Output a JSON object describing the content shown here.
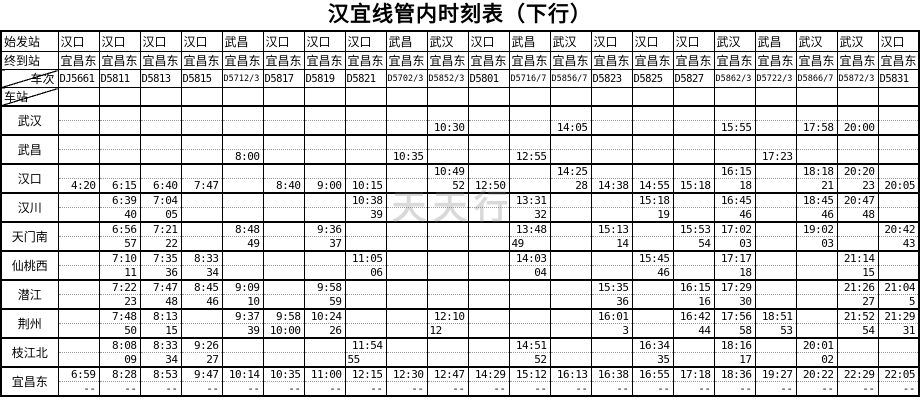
{
  "title": "汉宜线管内时刻表（下行）",
  "watermark": "天天行",
  "header": {
    "origin_label": "始发站",
    "dest_label": "终到站",
    "train_label": "车次",
    "station_label": "车站"
  },
  "colors": {
    "border": "#000000",
    "subrow_line": "#9a9a9a",
    "watermark": "#828282",
    "background": "#ffffff",
    "text": "#000000"
  },
  "columns": [
    {
      "origin": "汉口",
      "dest": "宜昌东",
      "train": "DJ5661"
    },
    {
      "origin": "汉口",
      "dest": "宜昌东",
      "train": "D5811"
    },
    {
      "origin": "汉口",
      "dest": "宜昌东",
      "train": "D5813"
    },
    {
      "origin": "汉口",
      "dest": "宜昌东",
      "train": "D5815"
    },
    {
      "origin": "武昌",
      "dest": "宜昌东",
      "train": "D5712/3"
    },
    {
      "origin": "汉口",
      "dest": "宜昌东",
      "train": "D5817"
    },
    {
      "origin": "汉口",
      "dest": "宜昌东",
      "train": "D5819"
    },
    {
      "origin": "汉口",
      "dest": "宜昌东",
      "train": "D5821"
    },
    {
      "origin": "武昌",
      "dest": "宜昌东",
      "train": "D5702/3"
    },
    {
      "origin": "武汉",
      "dest": "宜昌东",
      "train": "D5852/3"
    },
    {
      "origin": "汉口",
      "dest": "宜昌东",
      "train": "D5801"
    },
    {
      "origin": "武昌",
      "dest": "宜昌东",
      "train": "D5716/7"
    },
    {
      "origin": "武汉",
      "dest": "宜昌东",
      "train": "D5856/7"
    },
    {
      "origin": "汉口",
      "dest": "宜昌东",
      "train": "D5823"
    },
    {
      "origin": "汉口",
      "dest": "宜昌东",
      "train": "D5825"
    },
    {
      "origin": "汉口",
      "dest": "宜昌东",
      "train": "D5827"
    },
    {
      "origin": "武汉",
      "dest": "宜昌东",
      "train": "D5862/3"
    },
    {
      "origin": "武昌",
      "dest": "宜昌东",
      "train": "D5722/3"
    },
    {
      "origin": "武汉",
      "dest": "宜昌东",
      "train": "D5866/7"
    },
    {
      "origin": "武汉",
      "dest": "宜昌东",
      "train": "D5872/3"
    },
    {
      "origin": "汉口",
      "dest": "宜昌东",
      "train": "D5831"
    }
  ],
  "stations": [
    {
      "name": "武汉",
      "arr": [
        "",
        "",
        "",
        "",
        "",
        "",
        "",
        "",
        "",
        "",
        "",
        "",
        "",
        "",
        "",
        "",
        "",
        "",
        "",
        "",
        ""
      ],
      "dep": [
        "",
        "",
        "",
        "",
        "",
        "",
        "",
        "",
        "",
        "10:30",
        "",
        "",
        "14:05",
        "",
        "",
        "",
        "15:55",
        "",
        "17:58",
        "20:00",
        ""
      ]
    },
    {
      "name": "武昌",
      "arr": [
        "",
        "",
        "",
        "",
        "",
        "",
        "",
        "",
        "",
        "",
        "",
        "",
        "",
        "",
        "",
        "",
        "",
        "",
        "",
        "",
        ""
      ],
      "dep": [
        "",
        "",
        "",
        "",
        "8:00",
        "",
        "",
        "",
        "10:35",
        "",
        "",
        "12:55",
        "",
        "",
        "",
        "",
        "",
        "17:23",
        "",
        "",
        ""
      ]
    },
    {
      "name": "汉口",
      "arr": [
        "",
        "",
        "",
        "",
        "",
        "",
        "",
        "",
        "",
        "10:49",
        "",
        "",
        "14:25",
        "",
        "",
        "",
        "16:15",
        "",
        "18:18",
        "20:20",
        ""
      ],
      "dep": [
        "4:20",
        "6:15",
        "6:40",
        "7:47",
        "",
        "8:40",
        "9:00",
        "10:15",
        "",
        "52",
        "12:50",
        "",
        "28",
        "14:38",
        "14:55",
        "15:18",
        "18",
        "",
        "21",
        "23",
        "20:05"
      ]
    },
    {
      "name": "汉川",
      "arr": [
        "",
        "6:39",
        "7:04",
        "",
        "",
        "",
        "",
        "10:38",
        "",
        "",
        "",
        "13:31",
        "",
        "",
        "15:18",
        "",
        "16:45",
        "",
        "18:45",
        "20:47",
        ""
      ],
      "dep": [
        "",
        "40",
        "05",
        "",
        "",
        "",
        "",
        "39",
        "",
        "",
        "",
        "32",
        "",
        "",
        "19",
        "",
        "46",
        "",
        "46",
        "48",
        ""
      ]
    },
    {
      "name": "天门南",
      "arr": [
        "",
        "6:56",
        "7:21",
        "",
        "8:48",
        "",
        "9:36",
        "",
        "",
        "",
        "",
        "13:48",
        "",
        "15:13",
        "",
        "15:53",
        "17:02",
        "",
        "19:02",
        "",
        "20:42"
      ],
      "dep": [
        "",
        "57",
        "22",
        "",
        "49",
        "",
        "37",
        "",
        "",
        "",
        "",
        "49",
        "",
        "14",
        "",
        "54",
        "03",
        "",
        "03",
        "",
        "43"
      ]
    },
    {
      "name": "仙桃西",
      "arr": [
        "",
        "7:10",
        "7:35",
        "8:33",
        "",
        "",
        "",
        "11:05",
        "",
        "",
        "",
        "14:03",
        "",
        "",
        "15:45",
        "",
        "17:17",
        "",
        "",
        "21:14",
        ""
      ],
      "dep": [
        "",
        "11",
        "36",
        "34",
        "",
        "",
        "",
        "06",
        "",
        "",
        "",
        "04",
        "",
        "",
        "46",
        "",
        "18",
        "",
        "",
        "15",
        ""
      ]
    },
    {
      "name": "潜江",
      "arr": [
        "",
        "7:22",
        "7:47",
        "8:45",
        "9:09",
        "",
        "9:58",
        "",
        "",
        "",
        "",
        "",
        "",
        "15:35",
        "",
        "16:15",
        "17:29",
        "",
        "",
        "21:26",
        "21:04"
      ],
      "dep": [
        "",
        "23",
        "48",
        "46",
        "10",
        "",
        "59",
        "",
        "",
        "",
        "",
        "",
        "",
        "36",
        "",
        "16",
        "30",
        "",
        "",
        "27",
        "5"
      ]
    },
    {
      "name": "荆州",
      "arr": [
        "",
        "7:48",
        "8:13",
        "",
        "9:37",
        "9:58",
        "10:24",
        "",
        "",
        "12:10",
        "",
        "",
        "",
        "16:01",
        "",
        "16:42",
        "17:56",
        "18:51",
        "",
        "21:52",
        "21:29"
      ],
      "dep": [
        "",
        "50",
        "15",
        "",
        "39",
        "10:00",
        "26",
        "",
        "",
        "12",
        "",
        "",
        "",
        "3",
        "",
        "44",
        "58",
        "53",
        "",
        "54",
        "31"
      ]
    },
    {
      "name": "枝江北",
      "arr": [
        "",
        "8:08",
        "8:33",
        "9:26",
        "",
        "",
        "",
        "11:54",
        "",
        "",
        "",
        "14:51",
        "",
        "",
        "16:34",
        "",
        "18:16",
        "",
        "20:01",
        "",
        ""
      ],
      "dep": [
        "",
        "09",
        "34",
        "27",
        "",
        "",
        "",
        "55",
        "",
        "",
        "",
        "52",
        "",
        "",
        "35",
        "",
        "17",
        "",
        "02",
        "",
        ""
      ]
    },
    {
      "name": "宜昌东",
      "arr": [
        "6:59",
        "8:28",
        "8:53",
        "9:47",
        "10:14",
        "10:35",
        "11:00",
        "12:15",
        "12:30",
        "12:47",
        "14:29",
        "15:12",
        "16:13",
        "16:38",
        "16:55",
        "17:18",
        "18:36",
        "19:27",
        "20:22",
        "22:29",
        "22:05"
      ],
      "dep": [
        "--",
        "--",
        "--",
        "--",
        "--",
        "--",
        "--",
        "--",
        "--",
        "--",
        "--",
        "--",
        "--",
        "--",
        "--",
        "--",
        "--",
        "--",
        "--",
        "--",
        "--"
      ]
    }
  ],
  "left_align_dep_cells": [
    [
      4,
      11
    ],
    [
      7,
      9
    ],
    [
      8,
      7
    ]
  ]
}
